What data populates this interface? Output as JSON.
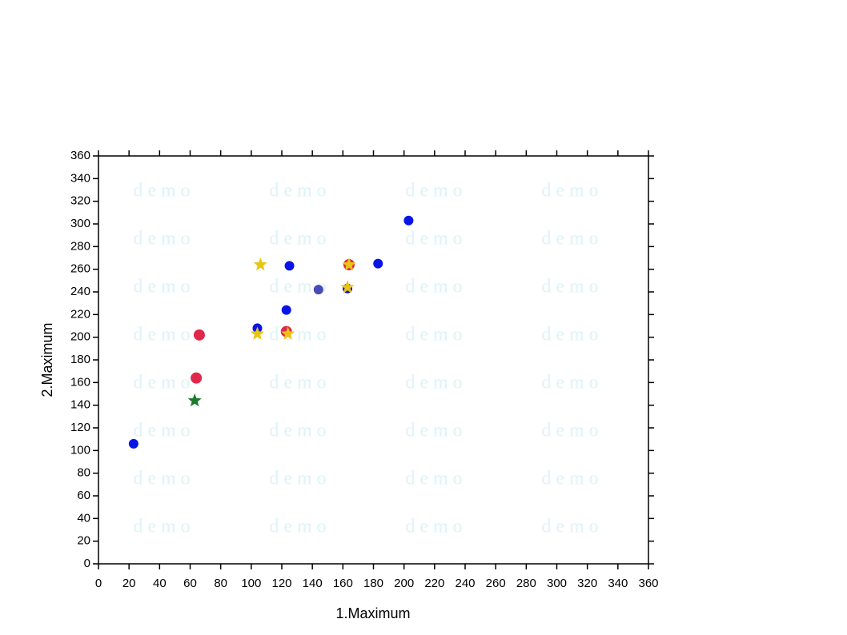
{
  "chart_data": {
    "type": "scatter",
    "x_label": "1.Maximum",
    "y_label": "2.Maximum",
    "watermark": "demo",
    "xlim": [
      0,
      360
    ],
    "ylim": [
      0,
      360
    ],
    "xticks": [
      0,
      20,
      40,
      60,
      80,
      100,
      120,
      140,
      160,
      180,
      200,
      220,
      240,
      260,
      280,
      300,
      320,
      340,
      360
    ],
    "yticks": [
      0,
      20,
      40,
      60,
      80,
      100,
      120,
      140,
      160,
      180,
      200,
      220,
      240,
      260,
      280,
      300,
      320,
      340,
      360
    ],
    "series": [
      {
        "color": "#0a14e6",
        "marker": "circle",
        "x": [
          23,
          104,
          123,
          125,
          163,
          164,
          183,
          203
        ],
        "values": [
          106,
          208,
          224,
          263,
          243,
          264,
          265,
          303
        ]
      },
      {
        "color": "#4a4ab8",
        "marker": "circle",
        "x": [
          144
        ],
        "values": [
          242
        ]
      },
      {
        "color": "#e0284a",
        "marker": "circle",
        "x": [
          64,
          66,
          123,
          164
        ],
        "values": [
          164,
          202,
          205,
          264
        ]
      },
      {
        "color": "#e8c414",
        "marker": "star",
        "x": [
          106,
          104,
          124,
          163,
          164
        ],
        "values": [
          264,
          203,
          203,
          244,
          264
        ]
      },
      {
        "color": "#1a7a2a",
        "marker": "star",
        "x": [
          63
        ],
        "values": [
          144
        ]
      }
    ]
  }
}
